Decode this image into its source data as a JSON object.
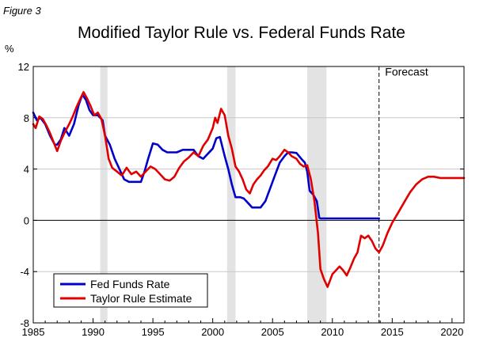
{
  "figure_label": "Figure 3",
  "chart_data": {
    "type": "line",
    "title": "Modified Taylor Rule vs. Federal Funds Rate",
    "ylabel": "%",
    "xlabel": "",
    "xlim": [
      1985,
      2021
    ],
    "ylim": [
      -8,
      12
    ],
    "xticks": [
      1985,
      1990,
      1995,
      2000,
      2005,
      2010,
      2015,
      2020
    ],
    "yticks": [
      -8,
      -4,
      0,
      4,
      8,
      12
    ],
    "grid": true,
    "legend_position": "bottom-left",
    "forecast_start": 2013.9,
    "annotations": [
      {
        "text": "Forecast",
        "x": 2014.4,
        "y": 11.3
      }
    ],
    "recessions": [
      [
        1990.6,
        1991.2
      ],
      [
        2001.2,
        2001.9
      ],
      [
        2007.9,
        2009.5
      ]
    ],
    "series": [
      {
        "name": "Fed Funds Rate",
        "color": "#0000cc",
        "x": [
          1985.0,
          1985.3,
          1985.6,
          1986.0,
          1986.4,
          1986.8,
          1987.0,
          1987.3,
          1987.6,
          1988.0,
          1988.4,
          1988.8,
          1989.1,
          1989.4,
          1989.7,
          1990.0,
          1990.4,
          1990.8,
          1991.0,
          1991.4,
          1991.8,
          1992.2,
          1992.6,
          1993.0,
          1993.5,
          1994.0,
          1994.3,
          1994.6,
          1995.0,
          1995.4,
          1995.8,
          1996.2,
          1996.6,
          1997.0,
          1997.5,
          1998.0,
          1998.4,
          1998.8,
          1999.2,
          1999.6,
          2000.0,
          2000.3,
          2000.6,
          2001.0,
          2001.3,
          2001.6,
          2001.9,
          2002.3,
          2002.6,
          2003.0,
          2003.3,
          2003.6,
          2004.0,
          2004.4,
          2004.8,
          2005.2,
          2005.6,
          2006.0,
          2006.3,
          2006.6,
          2007.0,
          2007.4,
          2007.7,
          2007.9,
          2008.1,
          2008.4,
          2008.7,
          2008.9,
          2009.0,
          2010.0,
          2011.0,
          2012.0,
          2013.0,
          2013.9
        ],
        "y": [
          8.4,
          7.8,
          8.0,
          7.5,
          6.6,
          5.9,
          5.9,
          6.3,
          7.2,
          6.6,
          7.5,
          9.0,
          9.8,
          9.4,
          8.6,
          8.2,
          8.2,
          7.8,
          6.6,
          5.9,
          4.8,
          4.0,
          3.2,
          3.0,
          3.0,
          3.0,
          3.8,
          4.8,
          6.0,
          5.9,
          5.5,
          5.3,
          5.3,
          5.3,
          5.5,
          5.5,
          5.5,
          5.0,
          4.8,
          5.2,
          5.6,
          6.4,
          6.5,
          5.0,
          4.0,
          2.8,
          1.8,
          1.8,
          1.7,
          1.3,
          1.0,
          1.0,
          1.0,
          1.5,
          2.5,
          3.5,
          4.5,
          5.0,
          5.3,
          5.3,
          5.25,
          4.8,
          4.5,
          3.8,
          2.3,
          2.0,
          1.5,
          0.2,
          0.15,
          0.15,
          0.15,
          0.15,
          0.15,
          0.15
        ]
      },
      {
        "name": "Taylor Rule Estimate",
        "color": "#e00000",
        "x": [
          1985.0,
          1985.2,
          1985.5,
          1985.8,
          1986.1,
          1986.4,
          1986.7,
          1987.0,
          1987.3,
          1987.6,
          1988.0,
          1988.3,
          1988.6,
          1988.9,
          1989.2,
          1989.5,
          1989.8,
          1990.1,
          1990.4,
          1990.7,
          1991.0,
          1991.3,
          1991.6,
          1992.0,
          1992.4,
          1992.8,
          1993.2,
          1993.6,
          1994.0,
          1994.4,
          1994.8,
          1995.2,
          1995.6,
          1996.0,
          1996.4,
          1996.8,
          1997.2,
          1997.6,
          1998.0,
          1998.4,
          1998.8,
          1999.2,
          1999.6,
          2000.0,
          2000.2,
          2000.4,
          2000.7,
          2001.0,
          2001.3,
          2001.6,
          2001.9,
          2002.2,
          2002.5,
          2002.8,
          2003.1,
          2003.4,
          2003.7,
          2004.0,
          2004.3,
          2004.6,
          2005.0,
          2005.3,
          2005.6,
          2006.0,
          2006.3,
          2006.6,
          2007.0,
          2007.3,
          2007.6,
          2007.9,
          2008.2,
          2008.5,
          2008.8,
          2009.0,
          2009.3,
          2009.6,
          2010.0,
          2010.3,
          2010.6,
          2010.9,
          2011.2,
          2011.5,
          2011.8,
          2012.1,
          2012.4,
          2012.7,
          2013.0,
          2013.3,
          2013.6,
          2013.9,
          2014.2,
          2014.6,
          2015.0,
          2015.5,
          2016.0,
          2016.5,
          2017.0,
          2017.5,
          2018.0,
          2018.5,
          2019.0,
          2019.5,
          2020.0,
          2020.5,
          2021.0
        ],
        "y": [
          7.5,
          7.2,
          8.1,
          7.9,
          7.4,
          6.8,
          6.1,
          5.4,
          6.2,
          6.8,
          7.5,
          8.1,
          8.8,
          9.4,
          10.0,
          9.5,
          8.9,
          8.2,
          8.4,
          7.9,
          6.6,
          4.8,
          4.1,
          3.8,
          3.5,
          4.1,
          3.6,
          3.8,
          3.4,
          3.8,
          4.2,
          4.0,
          3.6,
          3.2,
          3.1,
          3.4,
          4.1,
          4.6,
          4.9,
          5.3,
          5.0,
          5.8,
          6.3,
          7.2,
          8.0,
          7.6,
          8.7,
          8.2,
          6.6,
          5.6,
          4.2,
          3.8,
          3.2,
          2.4,
          2.1,
          2.8,
          3.2,
          3.5,
          3.9,
          4.2,
          4.8,
          4.7,
          5.0,
          5.5,
          5.3,
          5.0,
          4.8,
          4.4,
          4.2,
          4.3,
          3.2,
          1.5,
          -1.0,
          -3.8,
          -4.6,
          -5.2,
          -4.2,
          -3.9,
          -3.6,
          -3.9,
          -4.3,
          -3.7,
          -3.0,
          -2.5,
          -1.2,
          -1.4,
          -1.2,
          -1.6,
          -2.2,
          -2.5,
          -2.0,
          -1.0,
          -0.2,
          0.6,
          1.4,
          2.2,
          2.8,
          3.2,
          3.4,
          3.4,
          3.3,
          3.3,
          3.3,
          3.3,
          3.3
        ]
      }
    ]
  }
}
